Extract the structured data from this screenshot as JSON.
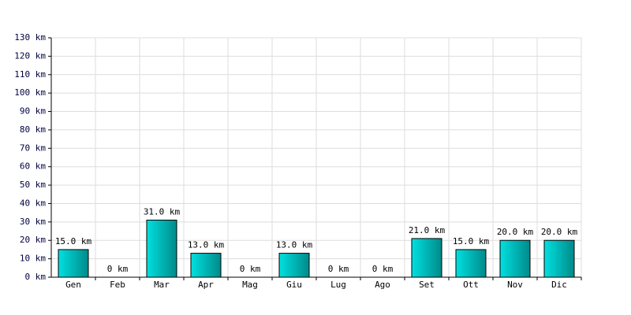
{
  "chart_data": {
    "type": "bar",
    "categories": [
      "Gen",
      "Feb",
      "Mar",
      "Apr",
      "Mag",
      "Giu",
      "Lug",
      "Ago",
      "Set",
      "Ott",
      "Nov",
      "Dic"
    ],
    "values": [
      15,
      0,
      31,
      13,
      0,
      13,
      0,
      0,
      21,
      15,
      20,
      20
    ],
    "value_labels": [
      "15.0 km",
      "0 km",
      "31.0 km",
      "13.0 km",
      "0 km",
      "13.0 km",
      "0 km",
      "0 km",
      "21.0 km",
      "15.0 km",
      "20.0 km",
      "20.0 km"
    ],
    "color": "#00e0e0",
    "ylim": [
      0,
      130
    ],
    "yticks": [
      {
        "value": 0,
        "label": "0 km"
      },
      {
        "value": 10,
        "label": "10 km"
      },
      {
        "value": 20,
        "label": "20 km"
      },
      {
        "value": 30,
        "label": "30 km"
      },
      {
        "value": 40,
        "label": "40 km"
      },
      {
        "value": 50,
        "label": "50 km"
      },
      {
        "value": 60,
        "label": "60 km"
      },
      {
        "value": 70,
        "label": "70 km"
      },
      {
        "value": 80,
        "label": "80 km"
      },
      {
        "value": 90,
        "label": "90 km"
      },
      {
        "value": 100,
        "label": "100 km"
      },
      {
        "value": 110,
        "label": "110 km"
      },
      {
        "value": 120,
        "label": "120 km"
      },
      {
        "value": 130,
        "label": "130 km"
      }
    ],
    "grid": true
  }
}
